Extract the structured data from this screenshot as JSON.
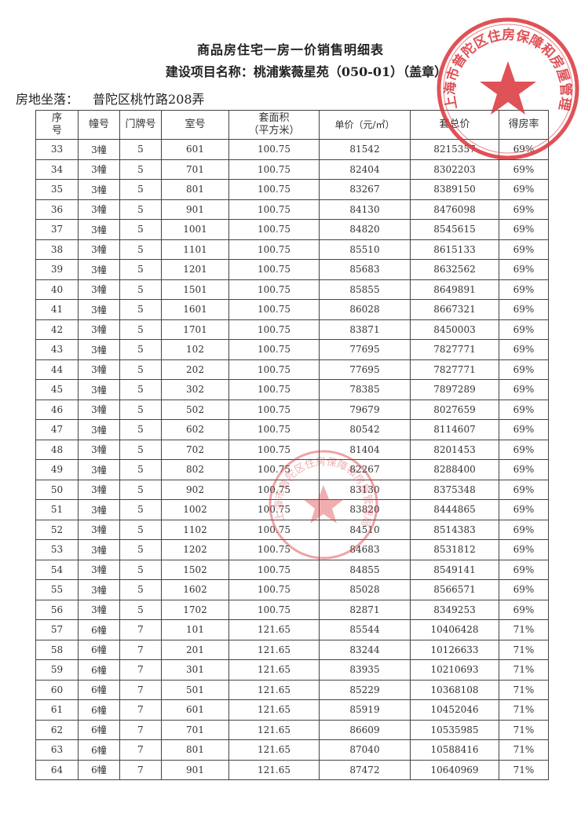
{
  "document": {
    "title": "商品房住宅一房一价销售明细表",
    "subtitle": "建设项目名称：桃浦紫薇星苑（050-01）（盖章）",
    "location_label": "房地坐落：",
    "location_value": "普陀区桃竹路208弄",
    "stamp_color": "#d9343a",
    "stamp_text": "上海市普陀区住房保障和房屋管理局"
  },
  "table": {
    "headers": [
      "序号",
      "幢号",
      "门牌号",
      "室号",
      "套面积（平方米）",
      "单价（元/㎡）",
      "套总价",
      "得房率"
    ],
    "header_lines": [
      [
        "序",
        "号"
      ],
      [
        "幢号"
      ],
      [
        "门牌号"
      ],
      [
        "室号"
      ],
      [
        "套面积",
        "（平方米）"
      ],
      [
        "单价",
        "（元/㎡）"
      ],
      [
        "套总价"
      ],
      [
        "得房率"
      ]
    ],
    "rows": [
      [
        "33",
        "3幢",
        "5",
        "601",
        "100.75",
        "81542",
        "8215357",
        "69%"
      ],
      [
        "34",
        "3幢",
        "5",
        "701",
        "100.75",
        "82404",
        "8302203",
        "69%"
      ],
      [
        "35",
        "3幢",
        "5",
        "801",
        "100.75",
        "83267",
        "8389150",
        "69%"
      ],
      [
        "36",
        "3幢",
        "5",
        "901",
        "100.75",
        "84130",
        "8476098",
        "69%"
      ],
      [
        "37",
        "3幢",
        "5",
        "1001",
        "100.75",
        "84820",
        "8545615",
        "69%"
      ],
      [
        "38",
        "3幢",
        "5",
        "1101",
        "100.75",
        "85510",
        "8615133",
        "69%"
      ],
      [
        "39",
        "3幢",
        "5",
        "1201",
        "100.75",
        "85683",
        "8632562",
        "69%"
      ],
      [
        "40",
        "3幢",
        "5",
        "1501",
        "100.75",
        "85855",
        "8649891",
        "69%"
      ],
      [
        "41",
        "3幢",
        "5",
        "1601",
        "100.75",
        "86028",
        "8667321",
        "69%"
      ],
      [
        "42",
        "3幢",
        "5",
        "1701",
        "100.75",
        "83871",
        "8450003",
        "69%"
      ],
      [
        "43",
        "3幢",
        "5",
        "102",
        "100.75",
        "77695",
        "7827771",
        "69%"
      ],
      [
        "44",
        "3幢",
        "5",
        "202",
        "100.75",
        "77695",
        "7827771",
        "69%"
      ],
      [
        "45",
        "3幢",
        "5",
        "302",
        "100.75",
        "78385",
        "7897289",
        "69%"
      ],
      [
        "46",
        "3幢",
        "5",
        "502",
        "100.75",
        "79679",
        "8027659",
        "69%"
      ],
      [
        "47",
        "3幢",
        "5",
        "602",
        "100.75",
        "80542",
        "8114607",
        "69%"
      ],
      [
        "48",
        "3幢",
        "5",
        "702",
        "100.75",
        "81404",
        "8201453",
        "69%"
      ],
      [
        "49",
        "3幢",
        "5",
        "802",
        "100.75",
        "82267",
        "8288400",
        "69%"
      ],
      [
        "50",
        "3幢",
        "5",
        "902",
        "100.75",
        "83130",
        "8375348",
        "69%"
      ],
      [
        "51",
        "3幢",
        "5",
        "1002",
        "100.75",
        "83820",
        "8444865",
        "69%"
      ],
      [
        "52",
        "3幢",
        "5",
        "1102",
        "100.75",
        "84510",
        "8514383",
        "69%"
      ],
      [
        "53",
        "3幢",
        "5",
        "1202",
        "100.75",
        "84683",
        "8531812",
        "69%"
      ],
      [
        "54",
        "3幢",
        "5",
        "1502",
        "100.75",
        "84855",
        "8549141",
        "69%"
      ],
      [
        "55",
        "3幢",
        "5",
        "1602",
        "100.75",
        "85028",
        "8566571",
        "69%"
      ],
      [
        "56",
        "3幢",
        "5",
        "1702",
        "100.75",
        "82871",
        "8349253",
        "69%"
      ],
      [
        "57",
        "6幢",
        "7",
        "101",
        "121.65",
        "85544",
        "10406428",
        "71%"
      ],
      [
        "58",
        "6幢",
        "7",
        "201",
        "121.65",
        "83244",
        "10126633",
        "71%"
      ],
      [
        "59",
        "6幢",
        "7",
        "301",
        "121.65",
        "83935",
        "10210693",
        "71%"
      ],
      [
        "60",
        "6幢",
        "7",
        "501",
        "121.65",
        "85229",
        "10368108",
        "71%"
      ],
      [
        "61",
        "6幢",
        "7",
        "601",
        "121.65",
        "85919",
        "10452046",
        "71%"
      ],
      [
        "62",
        "6幢",
        "7",
        "701",
        "121.65",
        "86609",
        "10535985",
        "71%"
      ],
      [
        "63",
        "6幢",
        "7",
        "801",
        "121.65",
        "87040",
        "10588416",
        "71%"
      ],
      [
        "64",
        "6幢",
        "7",
        "901",
        "121.65",
        "87472",
        "10640969",
        "71%"
      ]
    ]
  }
}
